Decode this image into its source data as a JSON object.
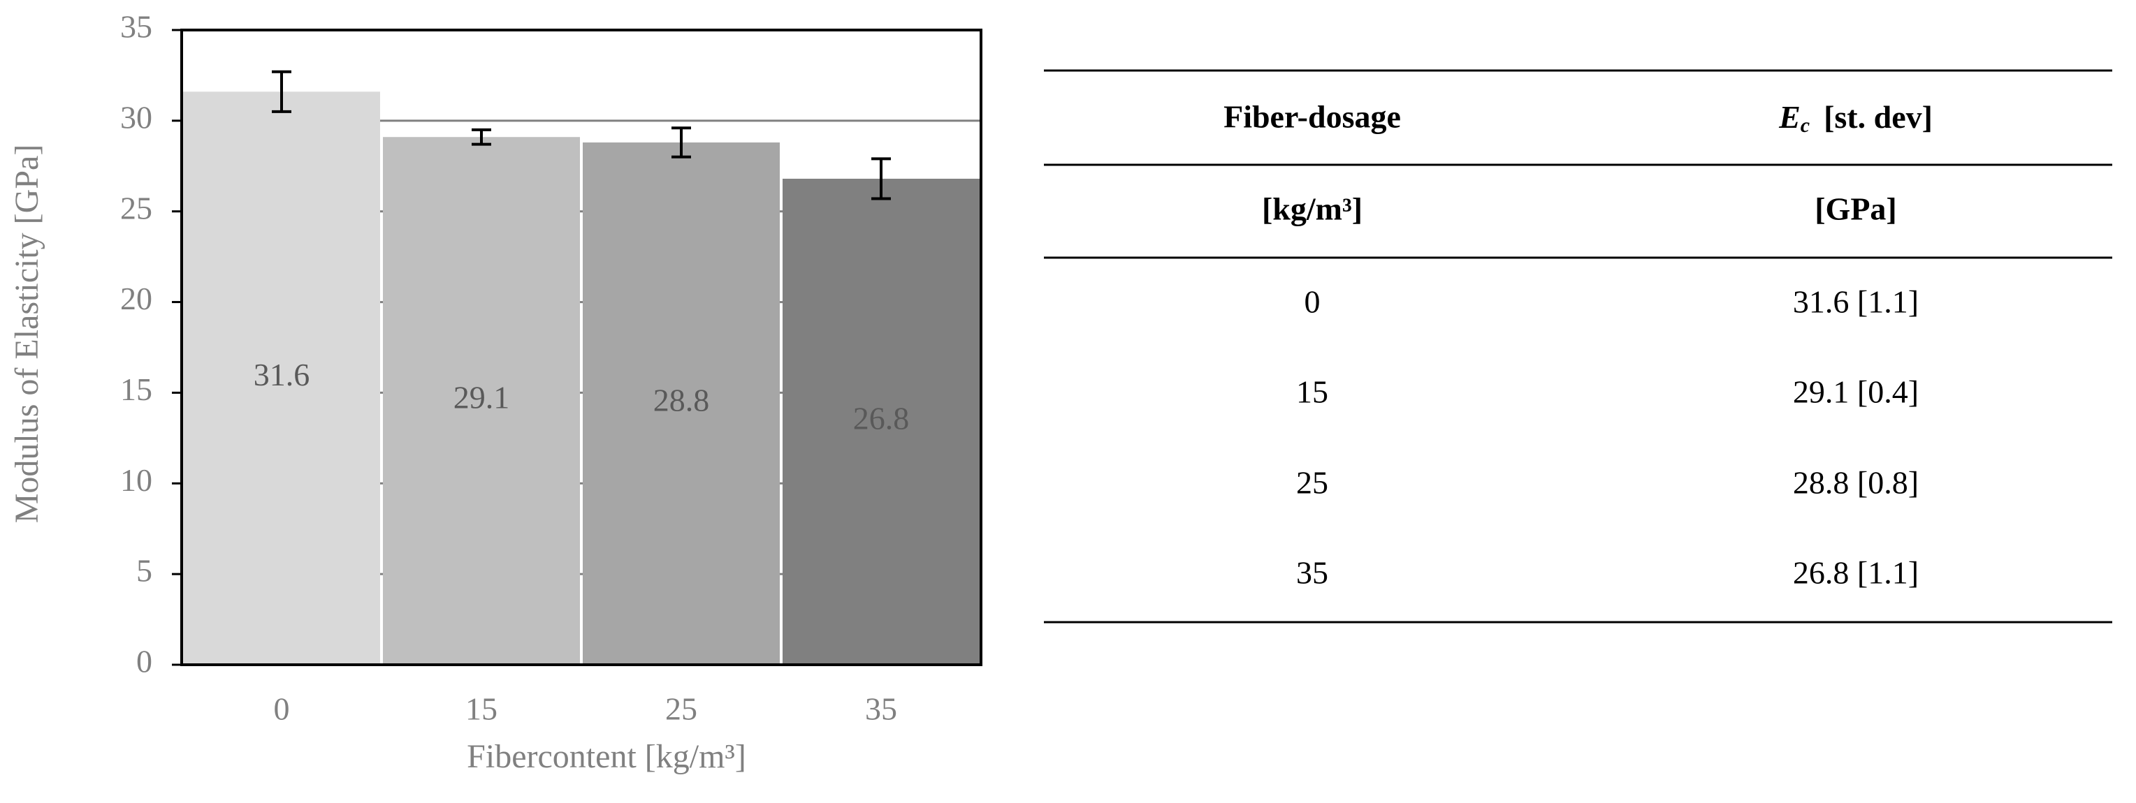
{
  "chart_data": {
    "type": "bar",
    "x_label": "Fibercontent [kg/m³]",
    "y_label": "Modulus of Elasticity [GPa]",
    "categories": [
      "0",
      "15",
      "25",
      "35"
    ],
    "values": [
      31.6,
      29.1,
      28.8,
      26.8
    ],
    "errors": [
      1.1,
      0.4,
      0.8,
      1.1
    ],
    "colors": [
      "#d9d9d9",
      "#bfbfbf",
      "#a6a6a6",
      "#808080"
    ],
    "ylim": [
      0,
      35
    ],
    "yticks": [
      0,
      5,
      10,
      15,
      20,
      25,
      30,
      35
    ],
    "grid": true
  },
  "table": {
    "header": [
      [
        "Fiber-dosage",
        {
          "symbol": "E",
          "subscript": "c",
          "text": "[st. dev]"
        }
      ],
      [
        "[kg/m³]",
        "[GPa]"
      ]
    ],
    "rows": [
      [
        "0",
        "31.6 [1.1]"
      ],
      [
        "15",
        "29.1 [0.4]"
      ],
      [
        "25",
        "28.8 [0.8]"
      ],
      [
        "35",
        "26.8 [1.1]"
      ]
    ]
  }
}
